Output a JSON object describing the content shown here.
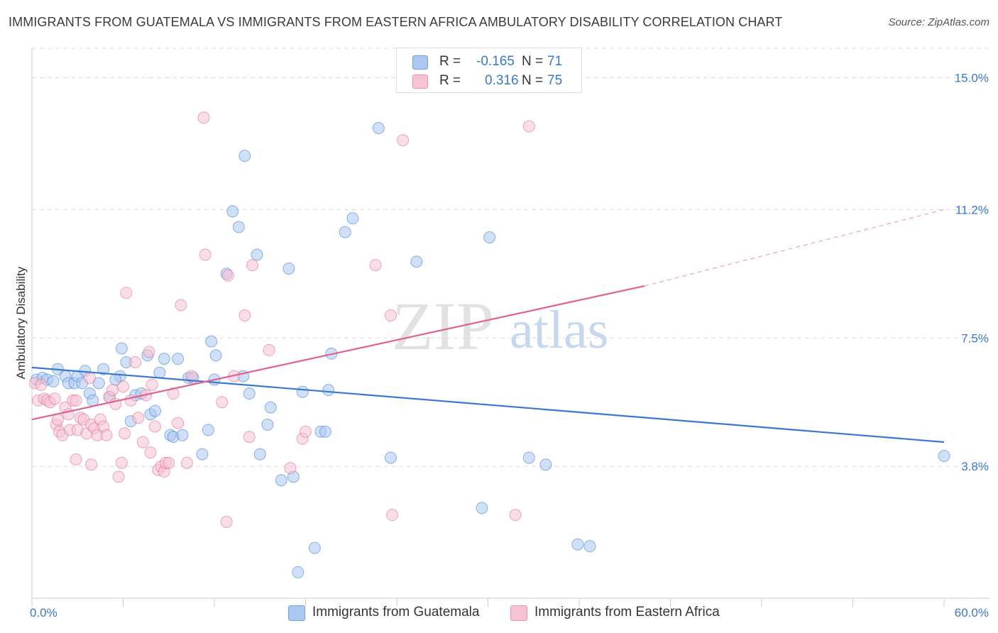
{
  "title": "IMMIGRANTS FROM GUATEMALA VS IMMIGRANTS FROM EASTERN AFRICA AMBULATORY DISABILITY CORRELATION CHART",
  "source": "Source: ZipAtlas.com",
  "watermark": {
    "zip": "ZIP",
    "atlas": "atlas"
  },
  "legend": {
    "rows": [
      {
        "r_label": "R =",
        "r_value": "-0.165",
        "n_label": "N =",
        "n_value": "71",
        "swatch_fill": "#aac8f0",
        "swatch_stroke": "#6f9fe0"
      },
      {
        "r_label": "R =",
        "r_value": "0.316",
        "n_label": "N =",
        "n_value": "75",
        "swatch_fill": "#f6c3d4",
        "swatch_stroke": "#ee90b0"
      }
    ]
  },
  "bottom_legend": [
    {
      "label": "Immigrants from Guatemala",
      "swatch_fill": "#aac8f0",
      "swatch_stroke": "#6f9fe0"
    },
    {
      "label": "Immigrants from Eastern Africa",
      "swatch_fill": "#f6c3d4",
      "swatch_stroke": "#ee90b0"
    }
  ],
  "chart_data": {
    "type": "scatter",
    "title": "IMMIGRANTS FROM GUATEMALA VS IMMIGRANTS FROM EASTERN AFRICA AMBULATORY DISABILITY CORRELATION CHART",
    "xlabel": "",
    "ylabel": "Ambulatory Disability",
    "xlim": [
      0,
      60
    ],
    "ylim": [
      0,
      15.85
    ],
    "x_tick_labels": [
      {
        "value": 0,
        "label": "0.0%"
      },
      {
        "value": 60,
        "label": "60.0%"
      }
    ],
    "y_tick_labels": [
      {
        "value": 3.8,
        "label": "3.8%"
      },
      {
        "value": 7.5,
        "label": "7.5%"
      },
      {
        "value": 11.2,
        "label": "11.2%"
      },
      {
        "value": 15.0,
        "label": "15.0%"
      }
    ],
    "grid": true,
    "legend_position": "top-center",
    "series": [
      {
        "name": "Immigrants from Guatemala",
        "color": "#3a78d0",
        "fill": "#aac8f0",
        "points": [
          [
            0.3,
            6.3
          ],
          [
            0.7,
            6.35
          ],
          [
            1.0,
            6.3
          ],
          [
            1.4,
            6.25
          ],
          [
            1.7,
            6.6
          ],
          [
            2.2,
            6.4
          ],
          [
            2.4,
            6.2
          ],
          [
            2.8,
            6.2
          ],
          [
            3.0,
            6.4
          ],
          [
            3.3,
            6.2
          ],
          [
            3.5,
            6.55
          ],
          [
            3.8,
            5.9
          ],
          [
            4.0,
            5.7
          ],
          [
            4.4,
            6.2
          ],
          [
            4.7,
            6.6
          ],
          [
            5.1,
            5.8
          ],
          [
            5.8,
            6.4
          ],
          [
            5.9,
            7.2
          ],
          [
            6.2,
            6.8
          ],
          [
            6.5,
            5.1
          ],
          [
            6.8,
            5.85
          ],
          [
            7.2,
            5.9
          ],
          [
            7.6,
            7.0
          ],
          [
            7.8,
            5.3
          ],
          [
            8.1,
            5.4
          ],
          [
            8.4,
            6.5
          ],
          [
            8.7,
            6.9
          ],
          [
            9.1,
            4.7
          ],
          [
            9.3,
            4.65
          ],
          [
            9.6,
            6.9
          ],
          [
            9.9,
            4.7
          ],
          [
            10.3,
            6.35
          ],
          [
            10.6,
            6.35
          ],
          [
            11.2,
            4.15
          ],
          [
            11.6,
            4.85
          ],
          [
            11.8,
            7.4
          ],
          [
            12.1,
            7.0
          ],
          [
            12.8,
            9.35
          ],
          [
            13.2,
            11.15
          ],
          [
            13.6,
            10.7
          ],
          [
            13.9,
            6.4
          ],
          [
            14.0,
            12.75
          ],
          [
            14.3,
            5.9
          ],
          [
            14.8,
            9.9
          ],
          [
            15.0,
            4.15
          ],
          [
            15.5,
            5.0
          ],
          [
            15.7,
            5.5
          ],
          [
            16.4,
            3.4
          ],
          [
            16.9,
            9.5
          ],
          [
            17.2,
            3.5
          ],
          [
            17.8,
            5.95
          ],
          [
            18.6,
            1.45
          ],
          [
            19.0,
            4.8
          ],
          [
            19.3,
            4.8
          ],
          [
            19.5,
            6.0
          ],
          [
            19.7,
            7.05
          ],
          [
            20.6,
            10.55
          ],
          [
            21.1,
            10.95
          ],
          [
            22.8,
            13.55
          ],
          [
            23.6,
            4.05
          ],
          [
            25.3,
            9.7
          ],
          [
            29.6,
            2.6
          ],
          [
            30.1,
            10.4
          ],
          [
            32.7,
            4.05
          ],
          [
            33.8,
            3.85
          ],
          [
            35.9,
            1.55
          ],
          [
            36.7,
            1.5
          ],
          [
            17.5,
            0.75
          ],
          [
            12.0,
            6.3
          ],
          [
            5.5,
            6.3
          ],
          [
            60.0,
            4.1
          ]
        ],
        "trend": {
          "x0": 0,
          "y0": 6.65,
          "x1": 60,
          "y1": 4.5
        }
      },
      {
        "name": "Immigrants from Eastern Africa",
        "color": "#e0628e",
        "fill": "#f6c3d4",
        "points": [
          [
            0.2,
            6.2
          ],
          [
            0.4,
            5.7
          ],
          [
            0.6,
            6.15
          ],
          [
            0.8,
            5.75
          ],
          [
            1.0,
            5.7
          ],
          [
            1.2,
            5.65
          ],
          [
            1.5,
            5.75
          ],
          [
            1.6,
            5.0
          ],
          [
            1.7,
            5.15
          ],
          [
            1.8,
            4.8
          ],
          [
            2.0,
            4.7
          ],
          [
            2.2,
            5.5
          ],
          [
            2.4,
            5.3
          ],
          [
            2.5,
            4.85
          ],
          [
            2.7,
            5.7
          ],
          [
            2.9,
            5.7
          ],
          [
            3.0,
            4.85
          ],
          [
            3.2,
            5.2
          ],
          [
            3.4,
            5.15
          ],
          [
            3.6,
            4.75
          ],
          [
            3.8,
            6.35
          ],
          [
            3.9,
            5.0
          ],
          [
            4.1,
            4.9
          ],
          [
            4.3,
            4.7
          ],
          [
            4.5,
            5.15
          ],
          [
            4.7,
            4.95
          ],
          [
            4.9,
            4.7
          ],
          [
            5.1,
            5.8
          ],
          [
            5.3,
            6.0
          ],
          [
            5.5,
            5.6
          ],
          [
            5.7,
            3.5
          ],
          [
            5.9,
            3.9
          ],
          [
            6.0,
            6.1
          ],
          [
            6.2,
            8.8
          ],
          [
            6.5,
            5.7
          ],
          [
            6.8,
            6.8
          ],
          [
            7.0,
            5.2
          ],
          [
            7.3,
            4.5
          ],
          [
            7.5,
            5.85
          ],
          [
            7.7,
            7.1
          ],
          [
            7.8,
            4.2
          ],
          [
            7.9,
            6.15
          ],
          [
            8.1,
            4.95
          ],
          [
            8.3,
            3.7
          ],
          [
            8.5,
            3.8
          ],
          [
            8.7,
            3.65
          ],
          [
            8.8,
            3.9
          ],
          [
            9.0,
            3.9
          ],
          [
            9.3,
            5.9
          ],
          [
            9.6,
            5.05
          ],
          [
            9.8,
            8.45
          ],
          [
            10.2,
            3.9
          ],
          [
            10.5,
            6.4
          ],
          [
            11.3,
            13.85
          ],
          [
            11.4,
            9.9
          ],
          [
            12.5,
            5.65
          ],
          [
            12.8,
            2.2
          ],
          [
            12.9,
            9.3
          ],
          [
            13.3,
            6.4
          ],
          [
            14.0,
            8.15
          ],
          [
            14.3,
            4.65
          ],
          [
            14.5,
            9.6
          ],
          [
            15.6,
            7.15
          ],
          [
            17.0,
            3.75
          ],
          [
            17.8,
            4.6
          ],
          [
            18.0,
            4.8
          ],
          [
            22.6,
            9.6
          ],
          [
            23.6,
            8.15
          ],
          [
            23.7,
            2.4
          ],
          [
            24.4,
            13.2
          ],
          [
            31.8,
            2.4
          ],
          [
            32.7,
            13.6
          ],
          [
            3.9,
            3.85
          ],
          [
            2.9,
            4.0
          ],
          [
            6.1,
            4.75
          ]
        ],
        "trend": {
          "x0": 0,
          "y0": 5.15,
          "x1": 40.3,
          "y1": 9.0
        },
        "trend_extension": {
          "x0": 40.3,
          "y0": 9.0,
          "x1": 60,
          "y1": 11.2
        }
      }
    ]
  }
}
